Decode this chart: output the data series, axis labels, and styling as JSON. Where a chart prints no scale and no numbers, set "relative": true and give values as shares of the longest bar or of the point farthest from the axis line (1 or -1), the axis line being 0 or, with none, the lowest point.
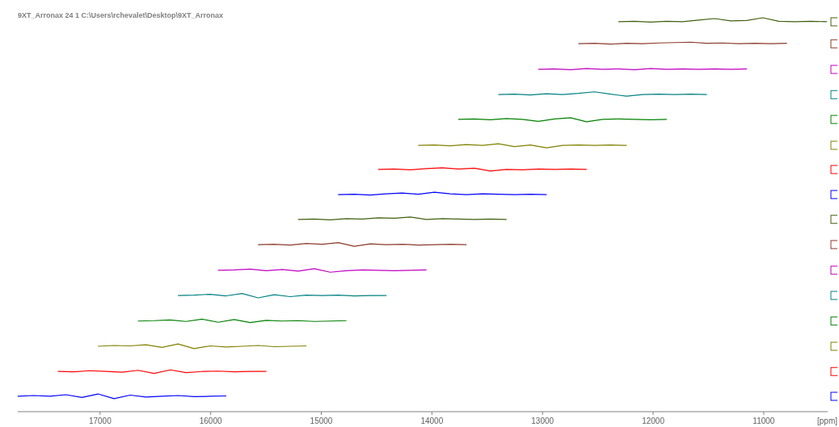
{
  "chart_data": {
    "type": "line",
    "title": "9XT_Arronax  24  1  C:\\Users\\rchevalet\\Desktop\\9XT_Arronax",
    "xlabel": "[ppm]",
    "relative": true,
    "xlim": [
      17744,
      10422
    ],
    "xticks": [
      17000,
      16000,
      15000,
      14000,
      13000,
      12000,
      11000
    ],
    "series": [
      {
        "color": "#0000ff",
        "x": [
          17744,
          17599,
          17454,
          17309,
          17164,
          17019,
          16874,
          16729,
          16584,
          16439,
          16294,
          16149,
          16004,
          15859
        ],
        "values": [
          0.039,
          0.041,
          0.039,
          0.043,
          0.036,
          0.045,
          0.033,
          0.042,
          0.037,
          0.039,
          0.041,
          0.038,
          0.039,
          0.04
        ]
      },
      {
        "color": "#ff0000",
        "x": [
          17382,
          17237,
          17092,
          16947,
          16802,
          16657,
          16512,
          16367,
          16222,
          16077,
          15932,
          15787,
          15642,
          15497
        ],
        "values": [
          0.102,
          0.101,
          0.104,
          0.102,
          0.1,
          0.105,
          0.097,
          0.106,
          0.099,
          0.102,
          0.103,
          0.101,
          0.102,
          0.102
        ]
      },
      {
        "color": "#808000",
        "x": [
          17020,
          16875,
          16730,
          16585,
          16440,
          16295,
          16150,
          16005,
          15860,
          15715,
          15570,
          15425,
          15280,
          15135
        ],
        "values": [
          0.166,
          0.168,
          0.167,
          0.17,
          0.163,
          0.172,
          0.16,
          0.167,
          0.164,
          0.166,
          0.168,
          0.165,
          0.166,
          0.167
        ]
      },
      {
        "color": "#008000",
        "x": [
          16658,
          16513,
          16368,
          16223,
          16078,
          15933,
          15788,
          15643,
          15498,
          15353,
          15208,
          15063,
          14918,
          14773
        ],
        "values": [
          0.23,
          0.231,
          0.233,
          0.229,
          0.235,
          0.227,
          0.234,
          0.226,
          0.232,
          0.23,
          0.231,
          0.229,
          0.23,
          0.231
        ]
      },
      {
        "color": "#008080",
        "x": [
          16296,
          16151,
          16006,
          15861,
          15716,
          15571,
          15426,
          15281,
          15136,
          14991,
          14846,
          14701,
          14556,
          14411
        ],
        "values": [
          0.295,
          0.296,
          0.298,
          0.294,
          0.3,
          0.289,
          0.297,
          0.292,
          0.296,
          0.295,
          0.296,
          0.294,
          0.295,
          0.295
        ]
      },
      {
        "color": "#c000c0",
        "x": [
          15934,
          15789,
          15644,
          15499,
          15354,
          15209,
          15064,
          14919,
          14774,
          14629,
          14484,
          14339,
          14194,
          14049
        ],
        "values": [
          0.359,
          0.36,
          0.362,
          0.358,
          0.361,
          0.357,
          0.363,
          0.354,
          0.358,
          0.36,
          0.359,
          0.358,
          0.359,
          0.36
        ]
      },
      {
        "color": "#8b3a2a",
        "x": [
          15572,
          15427,
          15282,
          15137,
          14992,
          14847,
          14702,
          14557,
          14412,
          14267,
          14122,
          13977,
          13832,
          13687
        ],
        "values": [
          0.424,
          0.425,
          0.423,
          0.427,
          0.425,
          0.429,
          0.42,
          0.426,
          0.424,
          0.425,
          0.423,
          0.424,
          0.425,
          0.424
        ]
      },
      {
        "color": "#406010",
        "x": [
          15210,
          15065,
          14920,
          14775,
          14630,
          14485,
          14340,
          14195,
          14050,
          13905,
          13760,
          13615,
          13470,
          13325
        ],
        "values": [
          0.488,
          0.489,
          0.487,
          0.49,
          0.489,
          0.492,
          0.491,
          0.494,
          0.488,
          0.49,
          0.489,
          0.488,
          0.489,
          0.488
        ]
      },
      {
        "color": "#0000ff",
        "x": [
          14848,
          14703,
          14558,
          14413,
          14268,
          14123,
          13978,
          13833,
          13688,
          13543,
          13398,
          13253,
          13108,
          12963
        ],
        "values": [
          0.551,
          0.552,
          0.55,
          0.553,
          0.555,
          0.552,
          0.557,
          0.553,
          0.551,
          0.553,
          0.552,
          0.551,
          0.552,
          0.551
        ]
      },
      {
        "color": "#ff0000",
        "x": [
          14486,
          14341,
          14196,
          14051,
          13906,
          13761,
          13616,
          13471,
          13326,
          13181,
          13036,
          12891,
          12746,
          12601
        ],
        "values": [
          0.615,
          0.616,
          0.614,
          0.617,
          0.619,
          0.616,
          0.618,
          0.611,
          0.615,
          0.614,
          0.616,
          0.615,
          0.616,
          0.615
        ]
      },
      {
        "color": "#808000",
        "x": [
          14124,
          13979,
          13834,
          13689,
          13544,
          13399,
          13254,
          13109,
          12964,
          12819,
          12674,
          12529,
          12384,
          12239
        ],
        "values": [
          0.676,
          0.677,
          0.675,
          0.678,
          0.676,
          0.68,
          0.673,
          0.677,
          0.67,
          0.676,
          0.677,
          0.676,
          0.677,
          0.676
        ]
      },
      {
        "color": "#008000",
        "x": [
          13762,
          13617,
          13472,
          13327,
          13182,
          13037,
          12892,
          12747,
          12602,
          12457,
          12312,
          12167,
          12022,
          11877
        ],
        "values": [
          0.742,
          0.743,
          0.741,
          0.744,
          0.742,
          0.737,
          0.743,
          0.746,
          0.736,
          0.742,
          0.743,
          0.742,
          0.741,
          0.742
        ]
      },
      {
        "color": "#008080",
        "x": [
          13400,
          13255,
          13110,
          12965,
          12820,
          12675,
          12530,
          12385,
          12240,
          12095,
          11950,
          11805,
          11660,
          11515
        ],
        "values": [
          0.805,
          0.806,
          0.804,
          0.807,
          0.805,
          0.808,
          0.812,
          0.806,
          0.801,
          0.805,
          0.806,
          0.805,
          0.806,
          0.805
        ]
      },
      {
        "color": "#c000c0",
        "x": [
          13038,
          12893,
          12748,
          12603,
          12458,
          12313,
          12168,
          12023,
          11878,
          11733,
          11588,
          11443,
          11298,
          11153
        ],
        "values": [
          0.869,
          0.87,
          0.868,
          0.871,
          0.869,
          0.87,
          0.868,
          0.871,
          0.869,
          0.87,
          0.869,
          0.87,
          0.869,
          0.87
        ]
      },
      {
        "color": "#8b3a2a",
        "x": [
          12676,
          12531,
          12386,
          12241,
          12096,
          11951,
          11806,
          11661,
          11516,
          11371,
          11226,
          11081,
          10936,
          10791
        ],
        "values": [
          0.934,
          0.935,
          0.933,
          0.935,
          0.934,
          0.936,
          0.937,
          0.938,
          0.935,
          0.936,
          0.934,
          0.935,
          0.934,
          0.935
        ]
      },
      {
        "color": "#406010",
        "x": [
          12314,
          12169,
          12024,
          11879,
          11734,
          11589,
          11444,
          11299,
          11154,
          11009,
          10864,
          10719,
          10574,
          10429
        ],
        "values": [
          0.99,
          0.991,
          0.989,
          0.991,
          0.99,
          0.994,
          0.998,
          0.992,
          0.993,
          1.0,
          0.991,
          0.99,
          0.991,
          0.99
        ]
      }
    ]
  }
}
